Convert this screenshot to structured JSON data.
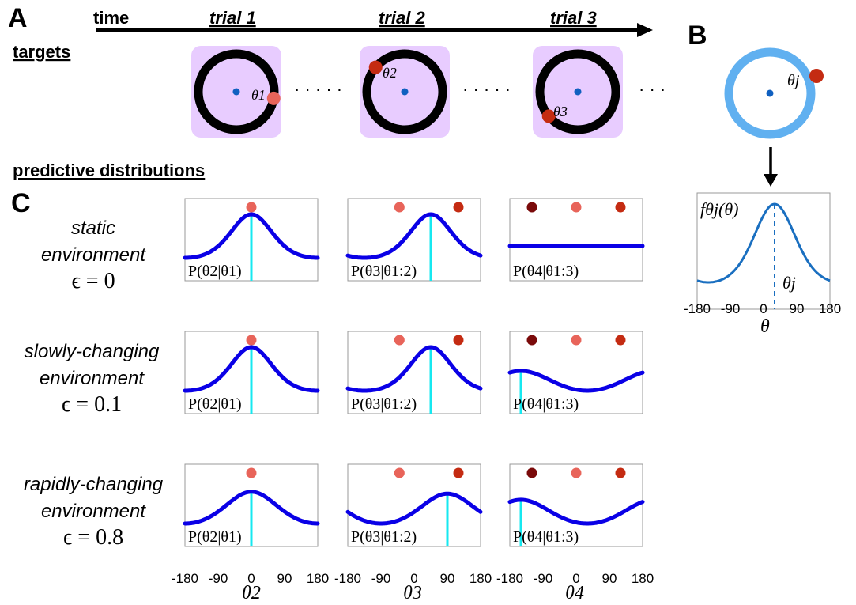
{
  "panel_labels": {
    "a": "A",
    "b": "B",
    "c": "C"
  },
  "header": {
    "time": "time",
    "targets": "targets",
    "predictive": "predictive distributions",
    "trials": [
      "trial 1",
      "trial 2",
      "trial 3"
    ],
    "dots": "· · · · ·",
    "dots_end": "· · ·"
  },
  "target_labels": [
    "θ1",
    "θ2",
    "θ3"
  ],
  "panel_b": {
    "target_label": "θj",
    "curve_label": "fθj(θ)",
    "peak_label": "θj",
    "xlabel": "θ",
    "ticks": [
      "-180",
      "-90",
      "0",
      "90",
      "180"
    ]
  },
  "environments": [
    {
      "name_line1": "static",
      "name_line2": "environment",
      "epsilon": "ϵ = 0"
    },
    {
      "name_line1": "slowly-changing",
      "name_line2": "environment",
      "epsilon": "ϵ = 0.1"
    },
    {
      "name_line1": "rapidly-changing",
      "name_line2": "environment",
      "epsilon": "ϵ = 0.8"
    }
  ],
  "column_probability_labels": [
    "P(θ2|θ1)",
    "P(θ3|θ1:2)",
    "P(θ4|θ1:3)"
  ],
  "x_axis": {
    "ticks": [
      "-180",
      "-90",
      "0",
      "90",
      "180"
    ],
    "labels": [
      "θ2",
      "θ3",
      "θ4"
    ]
  },
  "colors": {
    "curve": "#0a00e6",
    "cyan": "#16e8f0",
    "target_pad": "#e8ccff",
    "ring": "#000000",
    "center_dot": "#1060c0",
    "dot_light": "#e8645a",
    "dot_mid": "#c42b12",
    "dot_dark": "#7a0a0a",
    "b_ring": "#60b0f0",
    "b_curve": "#1a6fc0"
  },
  "chart_data": {
    "type": "line",
    "x_range": [
      -180,
      180
    ],
    "panels": [
      {
        "row": 0,
        "col": 0,
        "curve": {
          "shape": "vonmises",
          "peak": 0,
          "kappa": 1.0
        },
        "cyan_x": 0,
        "targets": [
          0
        ]
      },
      {
        "row": 0,
        "col": 1,
        "curve": {
          "shape": "vonmises",
          "peak": 45,
          "kappa": 1.0
        },
        "cyan_x": 45,
        "targets": [
          -40,
          120
        ]
      },
      {
        "row": 0,
        "col": 2,
        "curve": {
          "shape": "flat"
        },
        "cyan_x": null,
        "targets": [
          -120,
          0,
          120
        ]
      },
      {
        "row": 1,
        "col": 0,
        "curve": {
          "shape": "vonmises",
          "peak": 0,
          "kappa": 1.0
        },
        "cyan_x": 0,
        "targets": [
          0
        ]
      },
      {
        "row": 1,
        "col": 1,
        "curve": {
          "shape": "vonmises",
          "peak": 45,
          "kappa": 1.0
        },
        "cyan_x": 45,
        "targets": [
          -40,
          120
        ]
      },
      {
        "row": 1,
        "col": 2,
        "curve": {
          "shape": "vonmises",
          "peak": -150,
          "kappa": 0.25
        },
        "cyan_x": -150,
        "targets": [
          -120,
          0,
          120
        ]
      },
      {
        "row": 2,
        "col": 0,
        "curve": {
          "shape": "vonmises",
          "peak": 0,
          "kappa": 0.5
        },
        "cyan_x": 0,
        "targets": [
          0
        ]
      },
      {
        "row": 2,
        "col": 1,
        "curve": {
          "shape": "vonmises",
          "peak": 90,
          "kappa": 0.45
        },
        "cyan_x": 90,
        "targets": [
          -40,
          120
        ]
      },
      {
        "row": 2,
        "col": 2,
        "curve": {
          "shape": "vonmises",
          "peak": -150,
          "kappa": 0.32
        },
        "cyan_x": -150,
        "targets": [
          -120,
          0,
          120
        ]
      }
    ],
    "panel_b": {
      "curve": {
        "shape": "vonmises",
        "peak": 30,
        "kappa": 1.0
      },
      "dashed_x": 30,
      "x_range": [
        -180,
        180
      ]
    }
  }
}
